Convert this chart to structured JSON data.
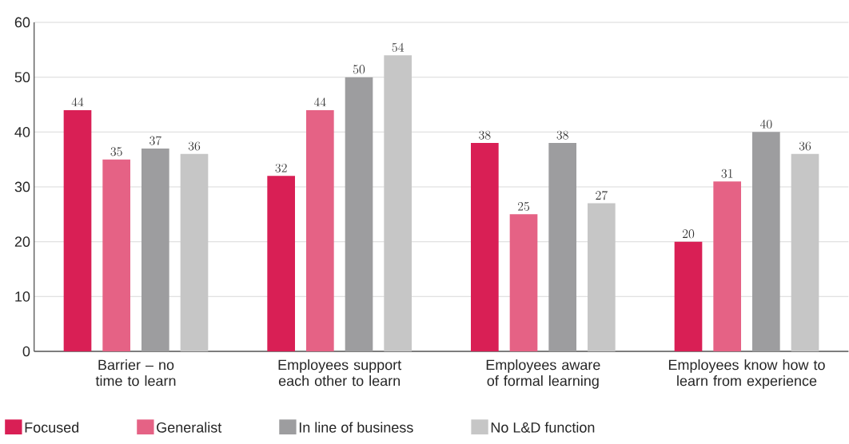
{
  "chart_data": {
    "type": "bar",
    "categories": [
      "Barrier – no time to learn",
      "Employees support each other to learn",
      "Employees aware of formal learning",
      "Employees know how to learn from experience"
    ],
    "series": [
      {
        "name": "Focused",
        "color": "#d91f55",
        "values": [
          44,
          32,
          38,
          20
        ]
      },
      {
        "name": "Generalist",
        "color": "#e56285",
        "values": [
          35,
          44,
          25,
          31
        ]
      },
      {
        "name": "In line of business",
        "color": "#9d9d9f",
        "values": [
          37,
          50,
          38,
          40
        ]
      },
      {
        "name": "No L&D function",
        "color": "#c6c6c6",
        "values": [
          36,
          54,
          27,
          36
        ]
      }
    ],
    "ylim": [
      0,
      60
    ],
    "yticks": [
      0,
      10,
      20,
      30,
      40,
      50,
      60
    ],
    "grid": "y",
    "legend": "bottom",
    "data_labels": true
  }
}
